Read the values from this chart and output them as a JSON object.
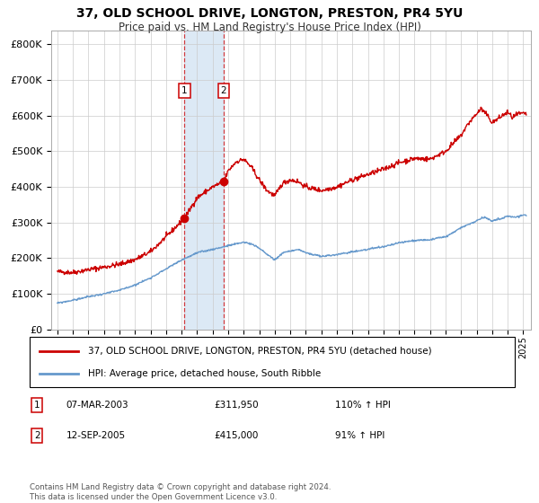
{
  "title": "37, OLD SCHOOL DRIVE, LONGTON, PRESTON, PR4 5YU",
  "subtitle": "Price paid vs. HM Land Registry's House Price Index (HPI)",
  "legend_label_red": "37, OLD SCHOOL DRIVE, LONGTON, PRESTON, PR4 5YU (detached house)",
  "legend_label_blue": "HPI: Average price, detached house, South Ribble",
  "transaction1_date": "07-MAR-2003",
  "transaction1_price": "£311,950",
  "transaction1_hpi": "110% ↑ HPI",
  "transaction2_date": "12-SEP-2005",
  "transaction2_price": "£415,000",
  "transaction2_hpi": "91% ↑ HPI",
  "transaction1_year": 2003.18,
  "transaction2_year": 2005.71,
  "transaction1_value": 311950,
  "transaction2_value": 415000,
  "ylim_min": 0,
  "ylim_max": 840000,
  "ytick_step": 100000,
  "xmin": 1994.6,
  "xmax": 2025.5,
  "red_color": "#cc0000",
  "blue_color": "#6699cc",
  "shade_color": "#dce9f5",
  "grid_color": "#cccccc",
  "background_color": "#ffffff",
  "footnote": "Contains HM Land Registry data © Crown copyright and database right 2024.\nThis data is licensed under the Open Government Licence v3.0.",
  "footer_color": "#555555",
  "red_anchors": [
    [
      1995.0,
      162000
    ],
    [
      1996.0,
      160000
    ],
    [
      1997.0,
      168000
    ],
    [
      1998.0,
      175000
    ],
    [
      1999.0,
      183000
    ],
    [
      2000.0,
      196000
    ],
    [
      2001.0,
      218000
    ],
    [
      2002.0,
      260000
    ],
    [
      2003.18,
      311950
    ],
    [
      2004.0,
      370000
    ],
    [
      2005.0,
      400000
    ],
    [
      2005.71,
      415000
    ],
    [
      2006.0,
      445000
    ],
    [
      2006.5,
      470000
    ],
    [
      2007.0,
      478000
    ],
    [
      2007.5,
      455000
    ],
    [
      2008.0,
      420000
    ],
    [
      2008.5,
      390000
    ],
    [
      2009.0,
      375000
    ],
    [
      2009.5,
      410000
    ],
    [
      2010.0,
      420000
    ],
    [
      2010.5,
      415000
    ],
    [
      2011.0,
      400000
    ],
    [
      2012.0,
      390000
    ],
    [
      2013.0,
      400000
    ],
    [
      2014.0,
      420000
    ],
    [
      2015.0,
      435000
    ],
    [
      2016.0,
      450000
    ],
    [
      2017.0,
      468000
    ],
    [
      2018.0,
      480000
    ],
    [
      2019.0,
      478000
    ],
    [
      2020.0,
      500000
    ],
    [
      2021.0,
      545000
    ],
    [
      2021.5,
      580000
    ],
    [
      2022.0,
      605000
    ],
    [
      2022.3,
      620000
    ],
    [
      2022.8,
      595000
    ],
    [
      2023.0,
      580000
    ],
    [
      2023.5,
      595000
    ],
    [
      2024.0,
      610000
    ],
    [
      2024.3,
      595000
    ],
    [
      2024.7,
      605000
    ],
    [
      2025.0,
      605000
    ]
  ],
  "blue_anchors": [
    [
      1995.0,
      74000
    ],
    [
      1996.0,
      82000
    ],
    [
      1997.0,
      92000
    ],
    [
      1998.0,
      100000
    ],
    [
      1999.0,
      110000
    ],
    [
      2000.0,
      125000
    ],
    [
      2001.0,
      145000
    ],
    [
      2002.0,
      170000
    ],
    [
      2003.0,
      195000
    ],
    [
      2004.0,
      215000
    ],
    [
      2005.0,
      225000
    ],
    [
      2006.0,
      235000
    ],
    [
      2007.0,
      245000
    ],
    [
      2007.5,
      240000
    ],
    [
      2008.0,
      228000
    ],
    [
      2009.0,
      195000
    ],
    [
      2009.5,
      215000
    ],
    [
      2010.0,
      220000
    ],
    [
      2010.5,
      225000
    ],
    [
      2011.0,
      215000
    ],
    [
      2012.0,
      205000
    ],
    [
      2013.0,
      210000
    ],
    [
      2014.0,
      218000
    ],
    [
      2015.0,
      225000
    ],
    [
      2016.0,
      232000
    ],
    [
      2017.0,
      243000
    ],
    [
      2018.0,
      250000
    ],
    [
      2019.0,
      252000
    ],
    [
      2020.0,
      260000
    ],
    [
      2021.0,
      285000
    ],
    [
      2022.0,
      305000
    ],
    [
      2022.5,
      315000
    ],
    [
      2023.0,
      305000
    ],
    [
      2023.5,
      310000
    ],
    [
      2024.0,
      318000
    ],
    [
      2024.5,
      315000
    ],
    [
      2025.0,
      322000
    ]
  ]
}
